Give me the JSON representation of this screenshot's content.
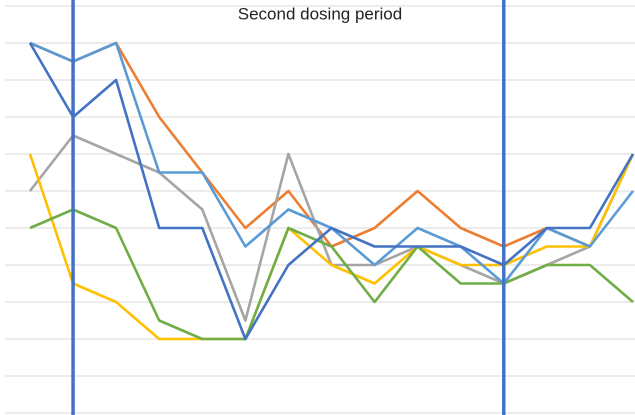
{
  "chart_data": {
    "type": "line",
    "title": "Second dosing period",
    "categories": [
      null,
      null,
      null,
      null,
      null,
      null,
      null,
      null,
      null,
      null,
      null,
      null,
      null,
      null,
      null
    ],
    "series": [
      {
        "color": "#ed7d31",
        "values": [
          10,
          9.5,
          10,
          8,
          6.5,
          5,
          6,
          4.5,
          5,
          6,
          5,
          4.5,
          5,
          4.5,
          7
        ]
      },
      {
        "color": "#a5a5a5",
        "values": [
          6,
          7.5,
          7,
          6.5,
          5.5,
          2.5,
          7,
          4,
          4,
          4.5,
          4,
          3.5,
          4,
          4.5,
          7
        ]
      },
      {
        "color": "#ffc000",
        "values": [
          7,
          3.5,
          3,
          2,
          2,
          2,
          5,
          4,
          3.5,
          4.5,
          4,
          4,
          4.5,
          4.5,
          7
        ]
      },
      {
        "color": "#70ad47",
        "values": [
          5,
          5.5,
          5,
          2.5,
          2,
          2,
          5,
          4.5,
          3,
          4.5,
          3.5,
          3.5,
          4,
          4,
          3
        ]
      },
      {
        "color": "#5b9bd5",
        "values": [
          10,
          9.5,
          10,
          6.5,
          6.5,
          4.5,
          5.5,
          5,
          4,
          5,
          4.5,
          3.5,
          5,
          4.5,
          6
        ]
      },
      {
        "color": "#4472c4",
        "values": [
          10,
          8,
          9,
          5,
          5,
          2,
          4,
          5,
          4.5,
          4.5,
          4.5,
          4,
          5,
          5,
          7
        ]
      }
    ],
    "ylim": [
      0,
      11
    ],
    "yticks": [
      0,
      1,
      2,
      3,
      4,
      5,
      6,
      7,
      8,
      9,
      10,
      11
    ],
    "grid": true,
    "vertical_lines_at": [
      1,
      11
    ],
    "vertical_line_color": "#4472c4"
  }
}
